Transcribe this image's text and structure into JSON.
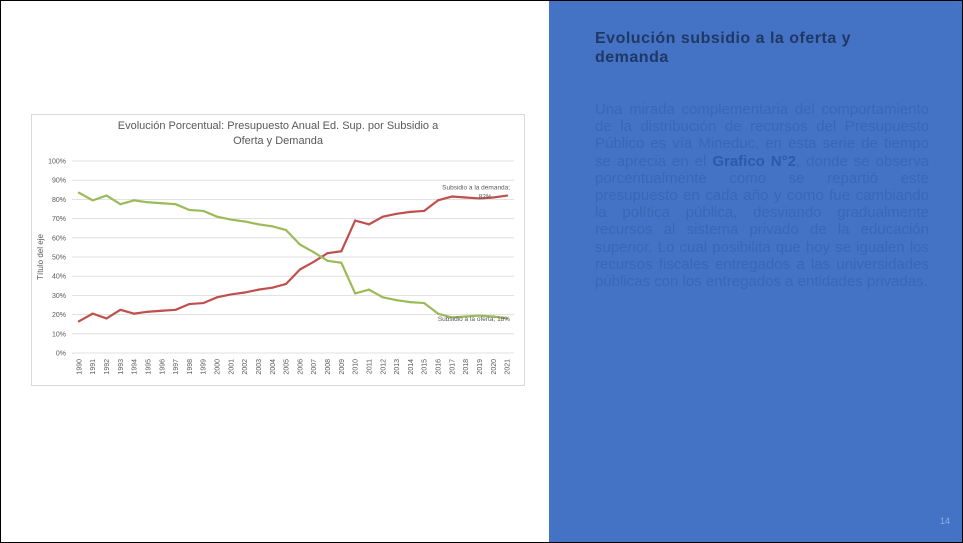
{
  "slide": {
    "title": "Evolución subsidio a la oferta y demanda",
    "paragraph_before_bold": "Una mirada complementaria del comportamiento de la distribución de recursos del Presupuesto Público es vía Mineduc, en esta serie de tiempo se aprecia en el ",
    "paragraph_bold": "Grafico N°2",
    "paragraph_after_bold": ", donde se observa porcentualmente como se repartió este presupuesto en cada año y como fue cambiando la política pública, desviando gradualmente recursos al sistema privado de la educación superior. Lo cual posibilita que hoy se igualen los recursos fiscales entregados a las universidades públicas con los entregados a entidades privadas.",
    "page_number": "14"
  },
  "colors": {
    "panel_background": "#4472c4",
    "title_text": "#1f3864",
    "body_text": "#3a66b8",
    "demanda_line": "#c0504d",
    "oferta_line": "#9bbb59",
    "gridline": "#d9d9d9"
  },
  "chart_data": {
    "type": "line",
    "title_line1": "Evolución Porcentual: Presupuesto Anual Ed. Sup. por Subsidio a",
    "title_line2": "Oferta y Demanda",
    "xlabel": "",
    "ylabel": "Título del eje",
    "ylim": [
      0,
      100
    ],
    "yticks": [
      "0%",
      "10%",
      "20%",
      "30%",
      "40%",
      "50%",
      "60%",
      "70%",
      "80%",
      "90%",
      "100%"
    ],
    "grid": true,
    "x": [
      "1990",
      "1991",
      "1992",
      "1993",
      "1994",
      "1995",
      "1996",
      "1997",
      "1998",
      "1999",
      "2000",
      "2001",
      "2002",
      "2003",
      "2004",
      "2005",
      "2006",
      "2007",
      "2008",
      "2009",
      "2010",
      "2011",
      "2012",
      "2013",
      "2014",
      "2015",
      "2016",
      "2017",
      "2018",
      "2019",
      "2020",
      "2021"
    ],
    "series": [
      {
        "name": "Subsidio a la demanda",
        "color": "#c0504d",
        "values": [
          16.5,
          20.5,
          18,
          22.5,
          20.5,
          21.5,
          22,
          22.5,
          25.5,
          26,
          29,
          30.5,
          31.5,
          33,
          34,
          36,
          43.5,
          47.5,
          52,
          53,
          69,
          67,
          71,
          72.5,
          73.5,
          74,
          79.5,
          81.5,
          81,
          80.5,
          81,
          82
        ]
      },
      {
        "name": "Subsidio a la oferta",
        "color": "#9bbb59",
        "values": [
          83.5,
          79.5,
          82,
          77.5,
          79.5,
          78.5,
          78,
          77.5,
          74.5,
          74,
          71,
          69.5,
          68.5,
          67,
          66,
          64,
          56.5,
          52.5,
          48,
          47,
          31,
          33,
          29,
          27.5,
          26.5,
          26,
          20.5,
          18.5,
          19,
          19.5,
          19,
          18
        ]
      }
    ],
    "data_labels": [
      {
        "series": "Subsidio a la demanda",
        "line1": "Subsidio a la demanda;",
        "line2": "82%"
      },
      {
        "series": "Subsidio a la oferta",
        "line1": "Subsidio a la oferta; 18%"
      }
    ]
  }
}
